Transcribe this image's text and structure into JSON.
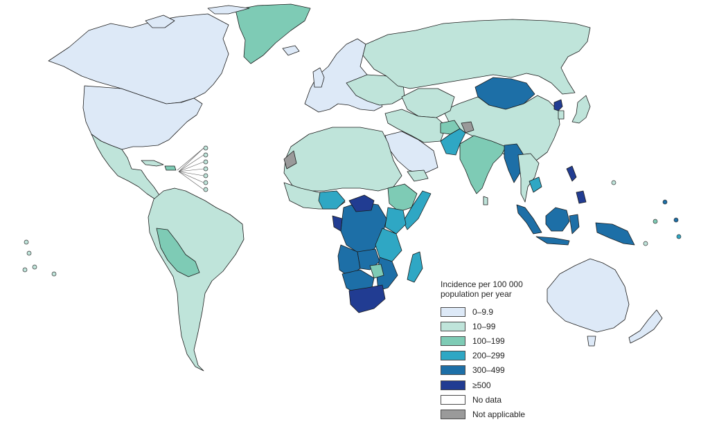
{
  "legend": {
    "title_line1": "Incidence per 100 000",
    "title_line2": "population per year",
    "items": [
      {
        "label": "0–9.9",
        "color": "#dde9f7"
      },
      {
        "label": "10–99",
        "color": "#bfe4da"
      },
      {
        "label": "100–199",
        "color": "#7ecbb5"
      },
      {
        "label": "200–299",
        "color": "#2fa7c4"
      },
      {
        "label": "300–499",
        "color": "#1d6fa7"
      },
      {
        "label": "≥500",
        "color": "#213c92"
      },
      {
        "label": "No data",
        "color": "#ffffff"
      },
      {
        "label": "Not applicable",
        "color": "#9a9a9a"
      }
    ]
  },
  "map_colors": {
    "c0": "#dde9f7",
    "c1": "#bfe4da",
    "c2": "#7ecbb5",
    "c3": "#2fa7c4",
    "c4": "#1d6fa7",
    "c5": "#213c92",
    "na": "#9a9a9a"
  }
}
